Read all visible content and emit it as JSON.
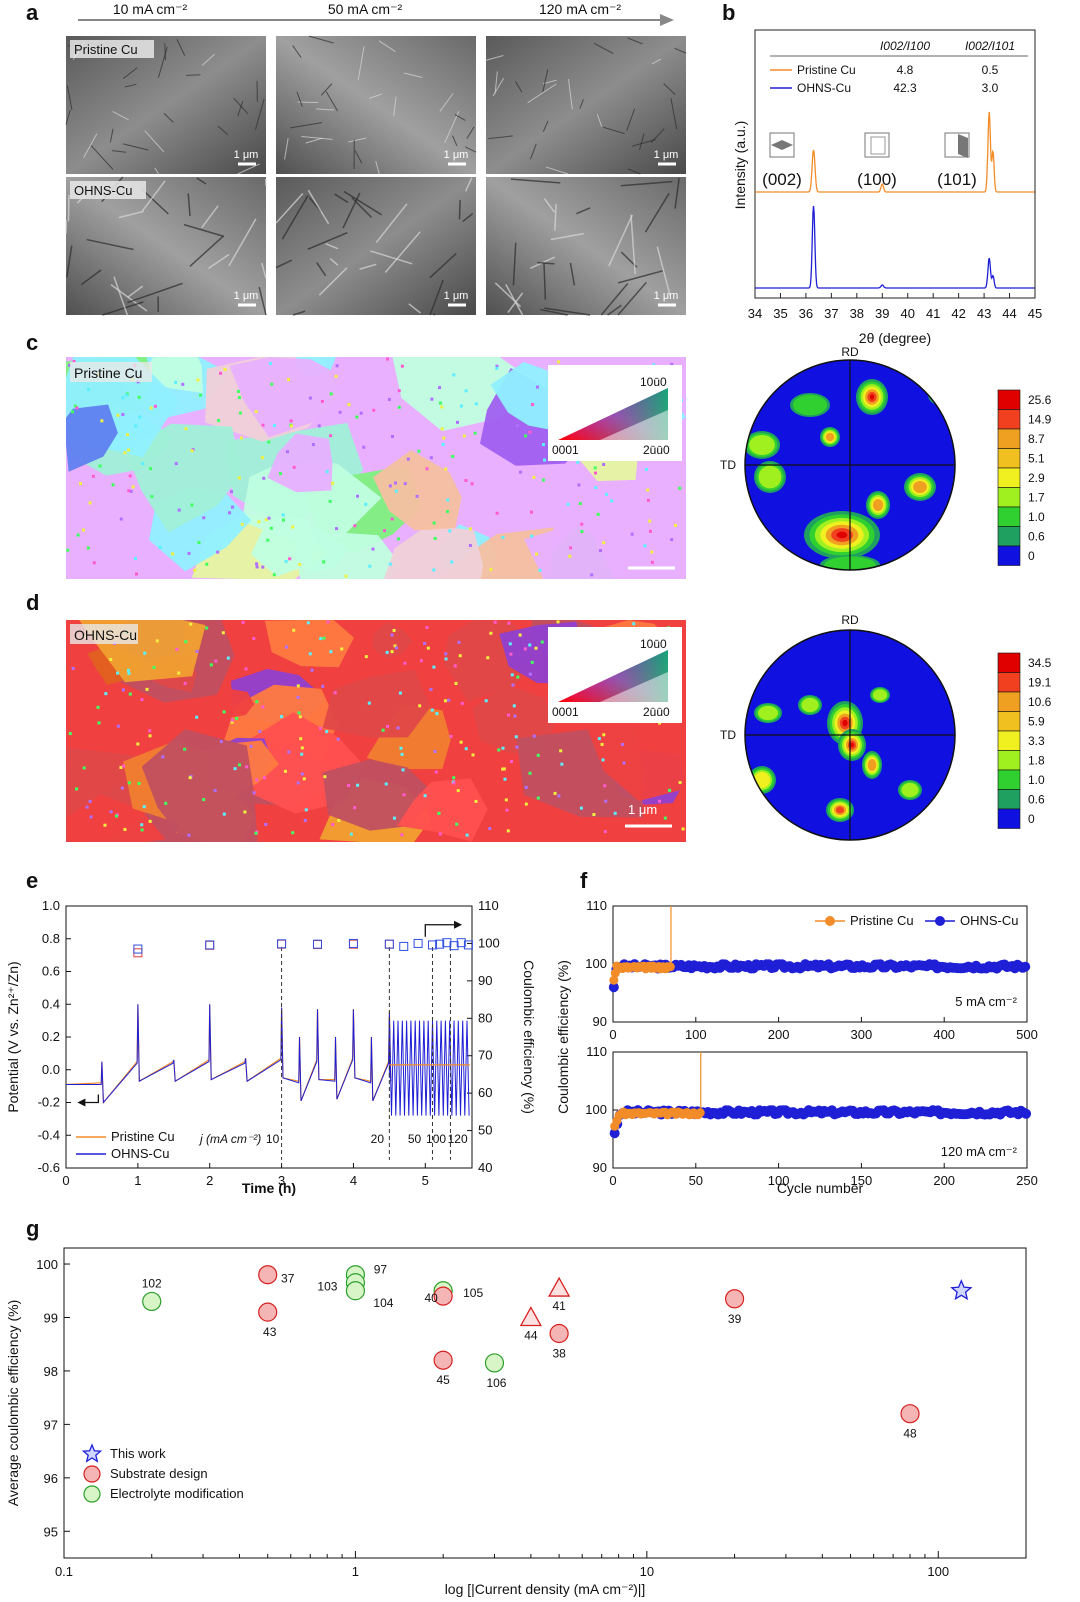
{
  "panel_letters": {
    "a": "a",
    "b": "b",
    "c": "c",
    "d": "d",
    "e": "e",
    "f": "f",
    "g": "g"
  },
  "panel_a": {
    "current_labels": [
      "10 mA cm⁻²",
      "50 mA cm⁻²",
      "120 mA cm⁻²"
    ],
    "row_labels": [
      "Pristine Cu",
      "OHNS-Cu"
    ],
    "scale": "1 μm",
    "colors": {
      "sem_dark": "#3a3a3a",
      "sem_light": "#9a9a9a"
    }
  },
  "panel_b": {
    "table_headers": [
      "",
      "I002/I100",
      "I002/I101"
    ],
    "table_rows": [
      {
        "name": "Pristine Cu",
        "v1": "4.8",
        "v2": "0.5",
        "color": "#f28c28"
      },
      {
        "name": "OHNS-Cu",
        "v1": "42.3",
        "v2": "3.0",
        "color": "#1f1fd6"
      }
    ],
    "facet_labels": [
      "(002)",
      "(100)",
      "(101)"
    ],
    "ylabel": "Intensity (a.u.)",
    "xlabel": "2θ (degree)",
    "xticks": [
      "34",
      "35",
      "36",
      "37",
      "38",
      "39",
      "40",
      "41",
      "42",
      "43",
      "44",
      "45"
    ]
  },
  "panel_c": {
    "label": "Pristine Cu",
    "ipf_labels": {
      "top": "10ū0",
      "left": "0001",
      "right": "2ūū0"
    },
    "pole_labels": {
      "rd": "RD",
      "td": "TD"
    },
    "colorbar": [
      "25.6",
      "14.9",
      "8.7",
      "5.1",
      "2.9",
      "1.7",
      "1.0",
      "0.6",
      "0"
    ]
  },
  "panel_d": {
    "label": "OHNS-Cu",
    "ipf_labels": {
      "top": "10ū0",
      "left": "0001",
      "right": "2ūū0"
    },
    "pole_labels": {
      "rd": "RD",
      "td": "TD"
    },
    "colorbar": [
      "34.5",
      "19.1",
      "10.6",
      "5.9",
      "3.3",
      "1.8",
      "1.0",
      "0.6",
      "0"
    ],
    "scale": "1 μm"
  },
  "chart_data": [
    {
      "type": "line",
      "panel": "e",
      "xlabel": "Time (h)",
      "ylabel": "Potential (V vs. Zn²⁺/Zn)",
      "y2label": "Coulombic efficiency (%)",
      "xlim": [
        0,
        5.65
      ],
      "ylim": [
        -0.6,
        1.0
      ],
      "y2lim": [
        40,
        110
      ],
      "xticks": [
        0,
        1,
        2,
        3,
        4,
        5
      ],
      "yticks": [
        -0.6,
        -0.4,
        -0.2,
        0.0,
        0.2,
        0.4,
        0.6,
        0.8,
        1.0
      ],
      "y2ticks": [
        40,
        50,
        60,
        70,
        80,
        90,
        100,
        110
      ],
      "legend": [
        "Pristine Cu",
        "OHNS-Cu"
      ],
      "current_label": "j (mA cm⁻²)",
      "current_marks": [
        "10",
        "20",
        "50",
        "100",
        "120"
      ],
      "ce_pristine": {
        "x": [
          1,
          2,
          3,
          3.5,
          4,
          4.5
        ],
        "y": [
          97.5,
          99.5,
          99.8,
          99.7,
          99.8,
          99.8
        ]
      },
      "ce_ohns": {
        "x": [
          1,
          2,
          3,
          3.5,
          4,
          4.5,
          4.7,
          4.9,
          5.1,
          5.2,
          5.3,
          5.4,
          5.5,
          5.6
        ],
        "y": [
          98.5,
          99.6,
          99.9,
          99.8,
          100.0,
          99.8,
          99.2,
          100.0,
          99.6,
          99.8,
          100.2,
          99.4,
          100.2,
          99.6
        ]
      }
    },
    {
      "type": "scatter",
      "panel": "f",
      "ylabel": "Coulombic efficiency (%)",
      "xlabel": "Cycle number",
      "legend": [
        "Pristine Cu",
        "OHNS-Cu"
      ],
      "top": {
        "condition": "5 mA cm⁻²",
        "xlim": [
          0,
          500
        ],
        "ylim": [
          90,
          110
        ],
        "xticks": [
          0,
          100,
          200,
          300,
          400,
          500
        ],
        "yticks": [
          90,
          100,
          110
        ],
        "pristine_end": 70,
        "ohns_end": 500
      },
      "bottom": {
        "condition": "120 mA cm⁻²",
        "xlim": [
          0,
          250
        ],
        "ylim": [
          90,
          110
        ],
        "xticks": [
          0,
          50,
          100,
          150,
          200,
          250
        ],
        "yticks": [
          90,
          100,
          110
        ],
        "pristine_end": 53,
        "ohns_end": 250
      }
    },
    {
      "type": "scatter",
      "panel": "g",
      "xlabel": "log [|Current density (mA cm⁻²)|]",
      "ylabel": "Average coulombic efficiency (%)",
      "xscale": "log",
      "xlim": [
        0.1,
        200
      ],
      "ylim": [
        94.5,
        100.3
      ],
      "xticks": [
        "0.1",
        "1",
        "10",
        "100"
      ],
      "yticks": [
        95,
        96,
        97,
        98,
        99,
        100
      ],
      "legend": [
        "This work",
        "Substrate design",
        "Electrolyte modification"
      ],
      "points": [
        {
          "x": 0.2,
          "y": 99.3,
          "kind": "electrolyte",
          "label": "102"
        },
        {
          "x": 0.5,
          "y": 99.8,
          "kind": "substrate",
          "label": "37"
        },
        {
          "x": 0.5,
          "y": 99.1,
          "kind": "substrate",
          "label": "43"
        },
        {
          "x": 1.0,
          "y": 99.8,
          "kind": "electrolyte",
          "label": "97"
        },
        {
          "x": 1.0,
          "y": 99.65,
          "kind": "electrolyte",
          "label": "103"
        },
        {
          "x": 1.0,
          "y": 99.5,
          "kind": "electrolyte",
          "label": "104"
        },
        {
          "x": 2.0,
          "y": 99.5,
          "kind": "electrolyte",
          "label": "105"
        },
        {
          "x": 2.0,
          "y": 99.4,
          "kind": "substrate",
          "label": "40"
        },
        {
          "x": 2.0,
          "y": 98.2,
          "kind": "substrate",
          "label": "45"
        },
        {
          "x": 3.0,
          "y": 98.15,
          "kind": "electrolyte",
          "label": "106"
        },
        {
          "x": 4.0,
          "y": 99.0,
          "kind": "substrate_tri",
          "label": "44"
        },
        {
          "x": 5.0,
          "y": 99.55,
          "kind": "substrate_tri",
          "label": "41"
        },
        {
          "x": 5.0,
          "y": 98.7,
          "kind": "substrate",
          "label": "38"
        },
        {
          "x": 20,
          "y": 99.35,
          "kind": "substrate",
          "label": "39"
        },
        {
          "x": 80,
          "y": 97.2,
          "kind": "substrate",
          "label": "48"
        },
        {
          "x": 120,
          "y": 99.5,
          "kind": "this",
          "label": ""
        }
      ]
    }
  ]
}
